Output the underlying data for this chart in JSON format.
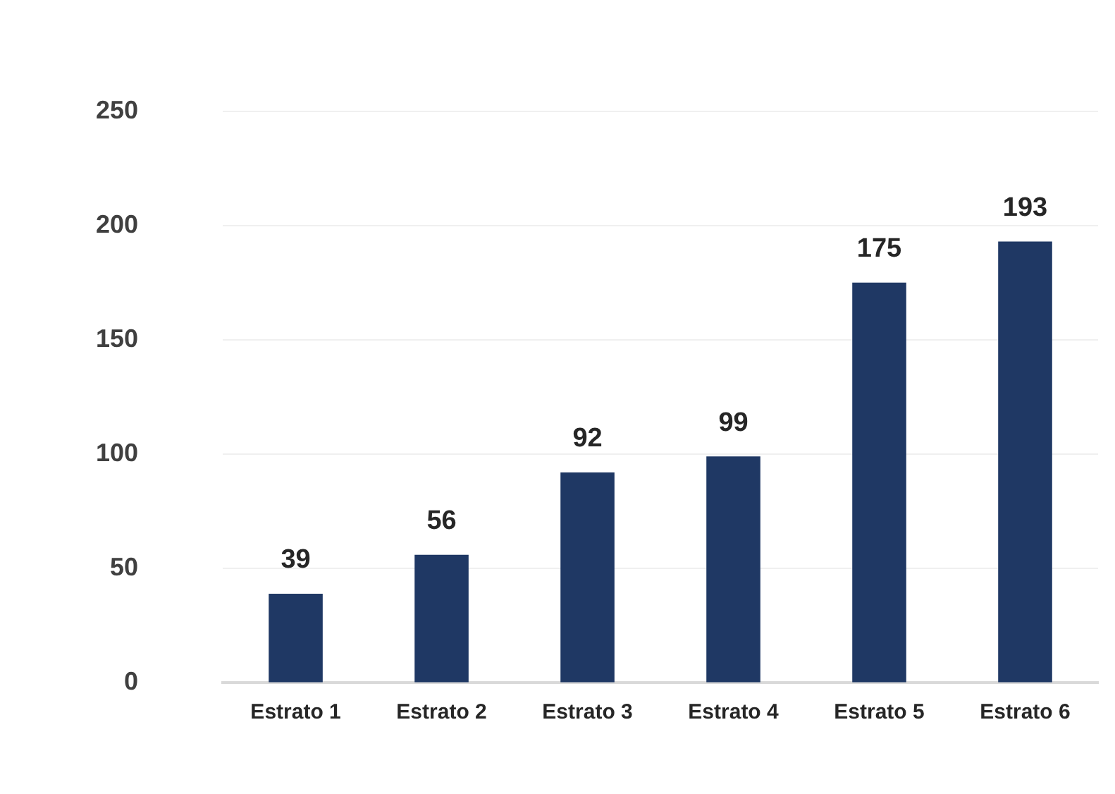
{
  "chart_data": {
    "type": "bar",
    "categories": [
      "Estrato 1",
      "Estrato 2",
      "Estrato 3",
      "Estrato 4",
      "Estrato 5",
      "Estrato 6"
    ],
    "values": [
      39,
      56,
      92,
      99,
      175,
      193
    ],
    "color": "#1f3864",
    "ylim": [
      0,
      250
    ],
    "yticks": [
      0,
      50,
      100,
      150,
      200,
      250
    ],
    "grid": "y",
    "data_labels": true,
    "legend": false
  }
}
